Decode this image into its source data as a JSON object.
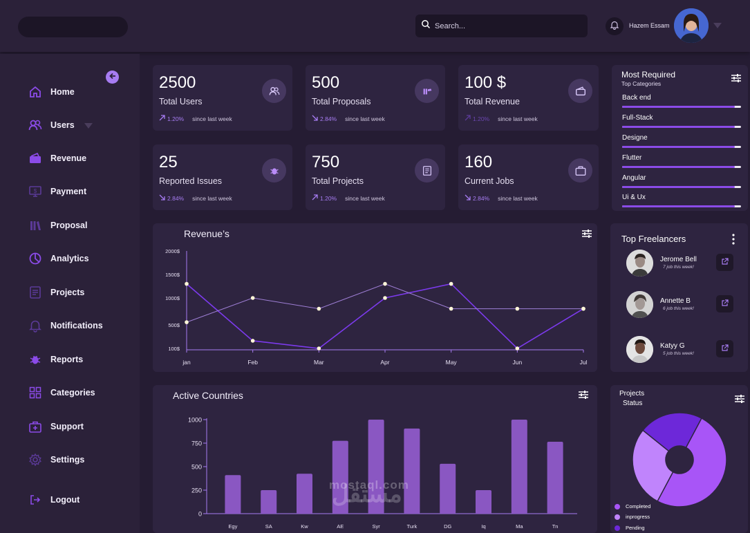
{
  "header": {
    "search_placeholder": "Search...",
    "user_name": "Hazem Essam"
  },
  "sidebar": {
    "items": [
      {
        "label": "Home",
        "icon": "home-icon"
      },
      {
        "label": "Users",
        "icon": "users-icon"
      },
      {
        "label": "Revenue",
        "icon": "wallet-icon"
      },
      {
        "label": "Payment",
        "icon": "payment-icon"
      },
      {
        "label": "Proposal",
        "icon": "proposal-icon"
      },
      {
        "label": "Analytics",
        "icon": "analytics-icon"
      },
      {
        "label": "Projects",
        "icon": "projects-icon"
      },
      {
        "label": "Notifications",
        "icon": "notification-bell-icon"
      },
      {
        "label": "Reports",
        "icon": "bug-icon"
      },
      {
        "label": "Categories",
        "icon": "categories-icon"
      },
      {
        "label": "Support",
        "icon": "support-icon"
      },
      {
        "label": "Settings",
        "icon": "gear-icon"
      },
      {
        "label": "Logout",
        "icon": "logout-icon"
      }
    ]
  },
  "stats": [
    {
      "value": "2500",
      "label": "Total Users",
      "trend": "1.20%",
      "since": "since last week",
      "direction": "up"
    },
    {
      "value": "500",
      "label": "Total Proposals",
      "trend": "2.84%",
      "since": "since last week",
      "direction": "down"
    },
    {
      "value": "100 $",
      "label": "Total Revenue",
      "trend": "1.20%",
      "since": "since last week",
      "direction": "up"
    },
    {
      "value": "25",
      "label": "Reported Issues",
      "trend": "2.84%",
      "since": "since last week",
      "direction": "down"
    },
    {
      "value": "750",
      "label": "Total Projects",
      "trend": "1.20%",
      "since": "since last week",
      "direction": "up"
    },
    {
      "value": "160",
      "label": "Current Jobs",
      "trend": "2.84%",
      "since": "since last week",
      "direction": "down"
    }
  ],
  "most_required": {
    "title": "Most Required",
    "subtitle": "Top  Categories",
    "items": [
      {
        "name": "Back end",
        "level": 0.95
      },
      {
        "name": "Full-Stack",
        "level": 0.95
      },
      {
        "name": "Designe",
        "level": 0.95
      },
      {
        "name": "Flutter",
        "level": 0.95
      },
      {
        "name": "Angular",
        "level": 0.95
      },
      {
        "name": "Ui & Ux",
        "level": 0.95
      }
    ]
  },
  "revenue_panel": {
    "title": "Revenue’s"
  },
  "freelancers": {
    "title": "Top Freelancers",
    "items": [
      {
        "name": "Jerome Bell",
        "jobs": "7  job this week!"
      },
      {
        "name": "Annette B",
        "jobs": "6  job this week!"
      },
      {
        "name": "Katyy G",
        "jobs": "5  job this week!"
      }
    ]
  },
  "countries_panel": {
    "title": "Active Countries"
  },
  "projects_status": {
    "title_line1": "Projects",
    "title_line2": "Status",
    "legend": [
      {
        "label": "Completed",
        "color": "#a855f7"
      },
      {
        "label": "inprogress",
        "color": "#c084fc"
      },
      {
        "label": "Pending",
        "color": "#6d28d9"
      }
    ]
  },
  "watermark": {
    "latin": "mostaql.com",
    "arabic": "مستقل"
  },
  "colors": {
    "accent": "#8b4be8",
    "accent_light": "#a77cf2",
    "panel": "#2e2440",
    "background": "#251c33"
  },
  "chart_data": [
    {
      "type": "line",
      "title": "Revenue’s",
      "categories": [
        "jan",
        "Feb",
        "Mar",
        "Apr",
        "May",
        "Jun",
        "Jul"
      ],
      "y_ticks": [
        "100$",
        "500$",
        "1000$",
        "1500$",
        "2000$"
      ],
      "series": [
        {
          "values": [
            1300,
            230,
            100,
            1000,
            1300,
            100,
            800
          ]
        },
        {
          "values": [
            550,
            1000,
            800,
            1300,
            800,
            800,
            800
          ]
        }
      ]
    },
    {
      "type": "bar",
      "title": "Active Countries",
      "categories": [
        "Egy",
        "SA",
        "Kw",
        "AE",
        "Syr",
        "Turk",
        "DG",
        "Iq",
        "Ma",
        "Tn"
      ],
      "values": [
        410,
        250,
        425,
        775,
        1000,
        905,
        530,
        250,
        1000,
        765
      ],
      "ylim": [
        0,
        1000
      ],
      "y_ticks": [
        0,
        250,
        500,
        750,
        1000
      ]
    },
    {
      "type": "pie",
      "title": "Projects Status",
      "labels": [
        "Completed",
        "inprogress",
        "Pending"
      ],
      "values": [
        50,
        28,
        22
      ]
    }
  ]
}
